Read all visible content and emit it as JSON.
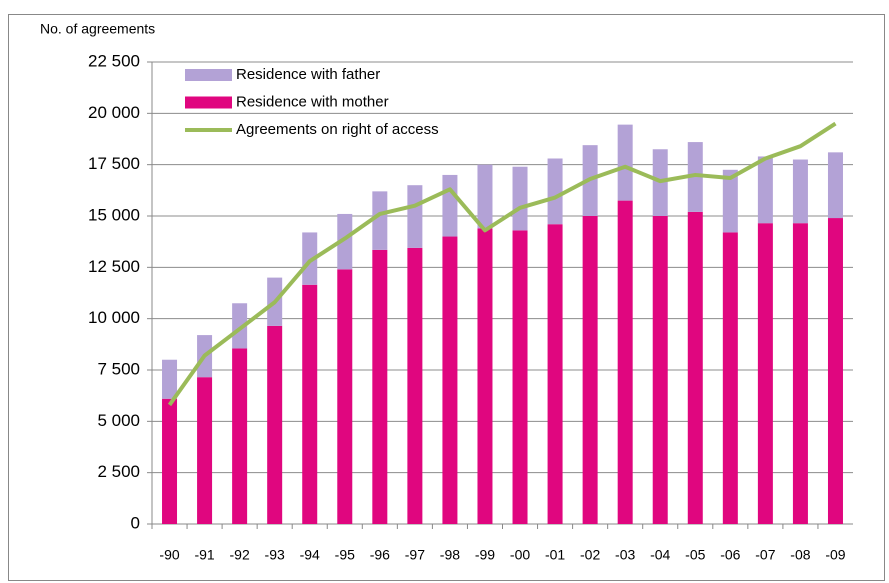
{
  "chart_data": {
    "type": "bar",
    "stacked": true,
    "y_label": "No. of agreements",
    "categories": [
      "-90",
      "-91",
      "-92",
      "-93",
      "-94",
      "-95",
      "-96",
      "-97",
      "-98",
      "-99",
      "-00",
      "-01",
      "-02",
      "-03",
      "-04",
      "-05",
      "-06",
      "-07",
      "-08",
      "-09"
    ],
    "series": [
      {
        "name": "Residence with father",
        "type": "bar",
        "color": "#b3a2d6",
        "values": [
          1900,
          2050,
          2200,
          2350,
          2550,
          2700,
          2850,
          3050,
          3000,
          3100,
          3100,
          3200,
          3450,
          3700,
          3250,
          3400,
          3050,
          3250,
          3100,
          3200
        ]
      },
      {
        "name": "Residence with mother",
        "type": "bar",
        "color": "#e0067f",
        "values": [
          6100,
          7150,
          8550,
          9650,
          11650,
          12400,
          13350,
          13450,
          14000,
          14400,
          14300,
          14600,
          15000,
          15750,
          15000,
          15200,
          14200,
          14650,
          14650,
          14900
        ]
      },
      {
        "name": "Agreements on right of access",
        "type": "line",
        "color": "#9bbb59",
        "values": [
          5800,
          8200,
          9500,
          10800,
          12800,
          13900,
          15100,
          15500,
          16300,
          14300,
          15400,
          15900,
          16800,
          17400,
          16700,
          17000,
          16850,
          17800,
          18400,
          19500
        ]
      }
    ],
    "stack_order": [
      1,
      0
    ],
    "ylim": [
      0,
      22500
    ],
    "yticks": [
      0,
      {
        "value": 2500,
        "label": "2 500"
      },
      {
        "value": 5000,
        "label": "5 000"
      },
      {
        "value": 7500,
        "label": "7 500"
      },
      {
        "value": 10000,
        "label": "10 000"
      },
      {
        "value": 12500,
        "label": "12 500"
      },
      {
        "value": 15000,
        "label": "15 000"
      },
      {
        "value": 17500,
        "label": "17 500"
      },
      {
        "value": 20000,
        "label": "20 000"
      },
      {
        "value": 22500,
        "label": "22 500"
      }
    ],
    "grid": true,
    "legend": "upper left"
  }
}
